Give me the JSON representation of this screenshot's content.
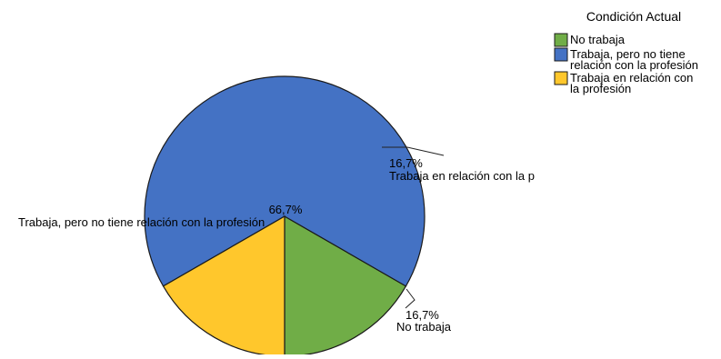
{
  "chart_data": {
    "type": "pie",
    "title": "",
    "legend_title": "Condición Actual",
    "legend_position": "top-right",
    "slices": [
      {
        "name": "No trabaja",
        "legend_lines": [
          "No trabaja"
        ],
        "value": 16.7,
        "percent_label": "16,7%",
        "slice_label": "No trabaja",
        "color": "#70ad47"
      },
      {
        "name": "Trabaja, pero no tiene relación con la profesión",
        "legend_lines": [
          "Trabaja, pero no tiene",
          "relación con la profesión"
        ],
        "value": 66.7,
        "percent_label": "66,7%",
        "slice_label": "Trabaja, pero no tiene relación con la profesión",
        "color": "#4472c4"
      },
      {
        "name": "Trabaja en relación con la profesión",
        "legend_lines": [
          "Trabaja en relación con",
          "la profesión"
        ],
        "value": 16.7,
        "percent_label": "16,7%",
        "slice_label": "Trabaja en relación con la p",
        "color": "#ffc72c"
      }
    ]
  }
}
